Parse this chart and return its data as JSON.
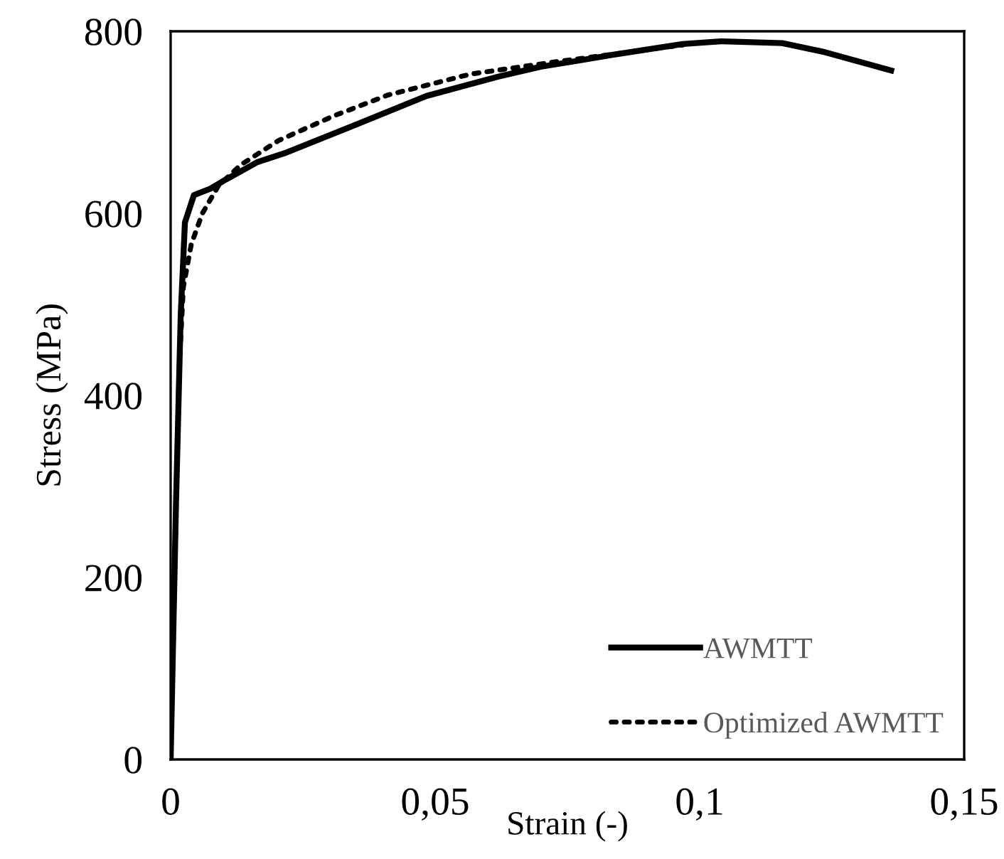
{
  "chart_data": {
    "type": "line",
    "xlabel": "Strain (-)",
    "ylabel": "Stress (MPa)",
    "xlim": [
      0,
      0.15
    ],
    "ylim": [
      0,
      800
    ],
    "xticks": [
      0,
      {
        "value": 0.05,
        "label": "0,05"
      },
      {
        "value": 0.1,
        "label": "0,1"
      },
      {
        "value": 0.15,
        "label": "0,15"
      }
    ],
    "yticks": [
      0,
      200,
      400,
      600,
      800
    ],
    "grid": false,
    "legend": "bottom right",
    "series": [
      {
        "name": "AWMTT",
        "color": "#000000",
        "line_style": "solid",
        "x": [
          0,
          0.001,
          0.0019,
          0.0027,
          0.0044,
          0.0075,
          0.0101,
          0.0163,
          0.0215,
          0.034,
          0.0484,
          0.0618,
          0.0699,
          0.0763,
          0.0833,
          0.0968,
          0.104,
          0.1156,
          0.1237,
          0.1362
        ],
        "values": [
          0,
          278,
          488,
          590,
          620,
          627,
          636,
          656,
          666,
          695,
          729,
          750,
          761,
          767,
          774,
          786,
          789,
          787,
          777,
          757
        ]
      },
      {
        "name": "Optimized AWMTT",
        "color": "#000000",
        "line_style": "dotted",
        "x": [
          0,
          0.0008,
          0.0016,
          0.0024,
          0.0039,
          0.006,
          0.009,
          0.0132,
          0.0204,
          0.0308,
          0.0411,
          0.0567,
          0.0722,
          0.0878,
          0.0968
        ],
        "values": [
          0,
          218,
          428,
          519,
          566,
          600,
          630,
          653,
          680,
          707,
          730,
          753,
          766,
          778,
          785
        ]
      }
    ]
  }
}
